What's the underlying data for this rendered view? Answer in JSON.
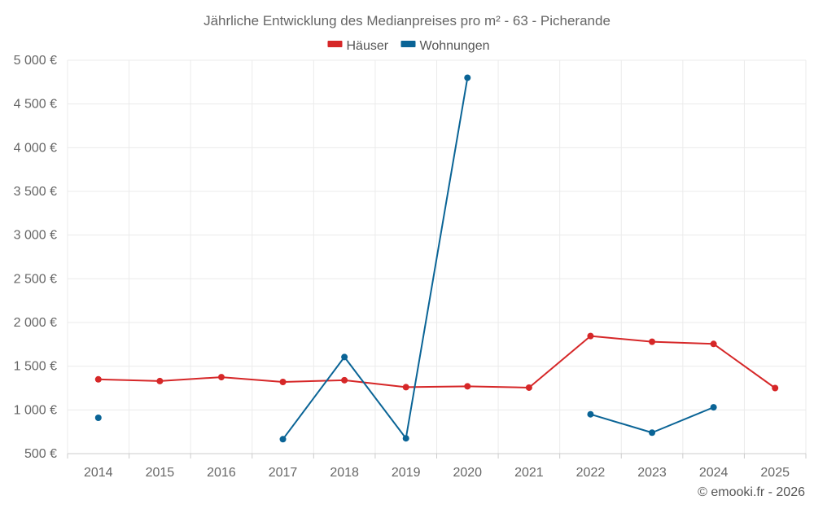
{
  "chart_data": {
    "type": "line",
    "title": "Jährliche Entwicklung des Medianpreises pro m² - 63 - Picherande",
    "xlabel": "",
    "ylabel": "",
    "categories": [
      "2014",
      "2015",
      "2016",
      "2017",
      "2018",
      "2019",
      "2020",
      "2021",
      "2022",
      "2023",
      "2024",
      "2025"
    ],
    "ylim": [
      500,
      5000
    ],
    "yticks": [
      500,
      1000,
      1500,
      2000,
      2500,
      3000,
      3500,
      4000,
      4500,
      5000
    ],
    "ytick_labels": [
      "500 €",
      "1 000 €",
      "1 500 €",
      "2 000 €",
      "2 500 €",
      "3 000 €",
      "3 500 €",
      "4 000 €",
      "4 500 €",
      "5 000 €"
    ],
    "grid": true,
    "legend_position": "top-center",
    "series": [
      {
        "name": "Häuser",
        "color": "#d62728",
        "values": [
          1350,
          1330,
          1375,
          1320,
          1340,
          1260,
          1270,
          1255,
          1845,
          1780,
          1755,
          1250
        ]
      },
      {
        "name": "Wohnungen",
        "color": "#0a6496",
        "values": [
          910,
          null,
          null,
          665,
          1605,
          675,
          4800,
          null,
          950,
          740,
          1030,
          null
        ]
      }
    ]
  },
  "credit": "© emooki.fr - 2026"
}
